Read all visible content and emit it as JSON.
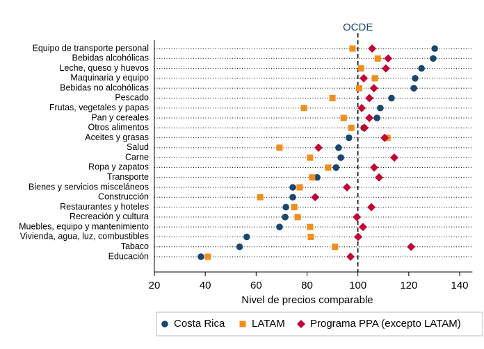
{
  "chart_data": {
    "type": "dot",
    "xlabel": "Nivel de precios comparable",
    "categories": [
      "Equipo de transporte personal",
      "Bebidas alcohólicas",
      "Leche, queso y huevos",
      "Maquinaria y equipo",
      "Bebidas no alcohólicas",
      "Pescado",
      "Frutas, vegetales y papas",
      "Pan y cereales",
      "Otros alimentos",
      "Aceites y grasas",
      "Salud",
      "Carne",
      "Ropa y zapatos",
      "Transporte",
      "Bienes y servicios misceláneos",
      "Construcción",
      "Restaurantes y hoteles",
      "Recreación y cultura",
      "Muebles, equipo y mantenimiento",
      "Vivienda, agua, luz, combustibles",
      "Tabaco",
      "Educación"
    ],
    "series": [
      {
        "name": "Costa Rica",
        "color": "#1a476f",
        "marker": "circle",
        "values": [
          130.2,
          129.6,
          125,
          122.5,
          122,
          113.2,
          108.8,
          107.5,
          102.3,
          96.5,
          92.4,
          93.3,
          91.4,
          84,
          74.4,
          74.4,
          71.7,
          71.4,
          69.2,
          56.3,
          53.5,
          38.3
        ]
      },
      {
        "name": "LATAM",
        "color": "#f28e1c",
        "marker": "square",
        "values": [
          97.9,
          107.8,
          101.2,
          106.7,
          100.5,
          90,
          78.8,
          94.4,
          97.4,
          111.6,
          69.2,
          81.2,
          88.3,
          82,
          77.1,
          61.6,
          75,
          76.3,
          81.2,
          81.5,
          91,
          41
        ]
      },
      {
        "name": "Programa PPA (excepto LATAM)",
        "color": "#c10534",
        "marker": "diamond",
        "values": [
          105.6,
          111.9,
          111,
          102.3,
          106.3,
          104.5,
          101.5,
          104.5,
          102.6,
          110.5,
          84.5,
          114.3,
          106.4,
          108.3,
          95.7,
          83.2,
          105.3,
          99.6,
          102,
          100.1,
          120.9,
          97.1
        ]
      }
    ],
    "reference_line": {
      "value": 100,
      "label": "OCDE"
    },
    "xlim": [
      20,
      145
    ],
    "xticks": [
      20,
      40,
      60,
      80,
      100,
      120,
      140
    ],
    "legend": "bottom"
  }
}
